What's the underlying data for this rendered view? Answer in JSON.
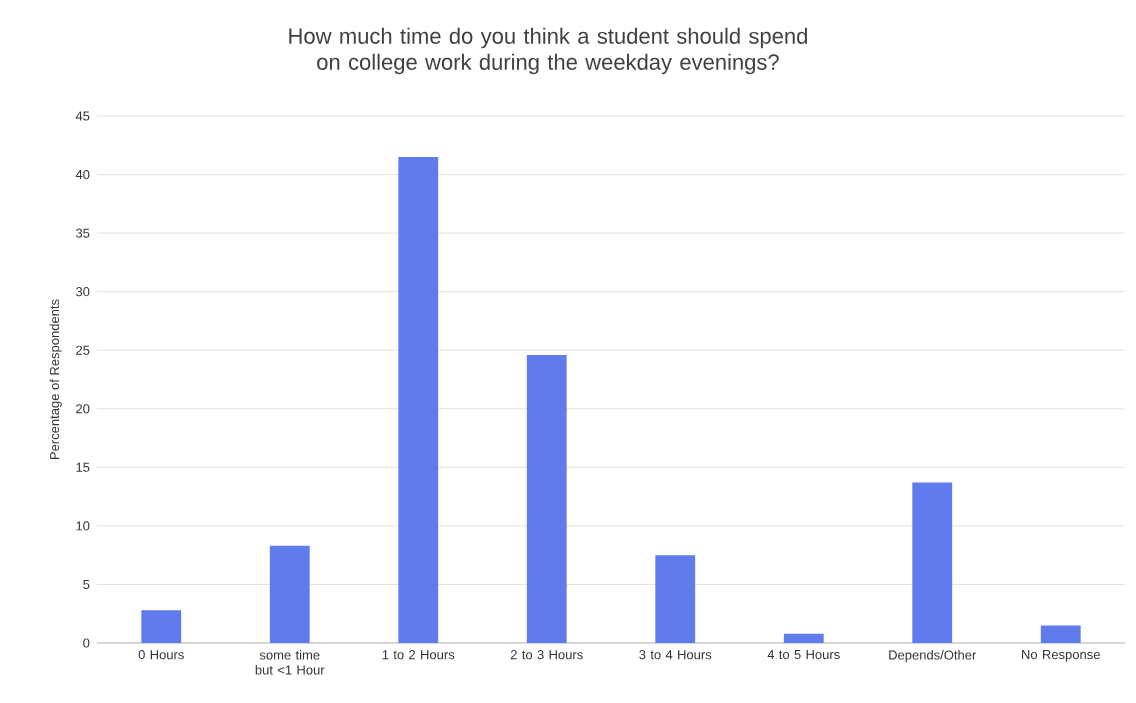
{
  "chart_data": {
    "type": "bar",
    "title": "How much time do you think a student should spend on college work during the weekday evenings?",
    "ylabel": "Percentage of Respondents",
    "categories": [
      "0 Hours",
      "some time but <1 Hour",
      "1 to 2 Hours",
      "2 to 3 Hours",
      "3 to 4 Hours",
      "4 to 5 Hours",
      "Depends/Other",
      "No Response"
    ],
    "values": [
      2.8,
      8.3,
      41.5,
      24.6,
      7.5,
      0.8,
      13.7,
      1.5
    ],
    "color": "#5f7bec",
    "ylim": [
      0,
      45
    ],
    "yticks": [
      0,
      5,
      10,
      15,
      20,
      25,
      30,
      35,
      40,
      45
    ],
    "grid": "y"
  }
}
